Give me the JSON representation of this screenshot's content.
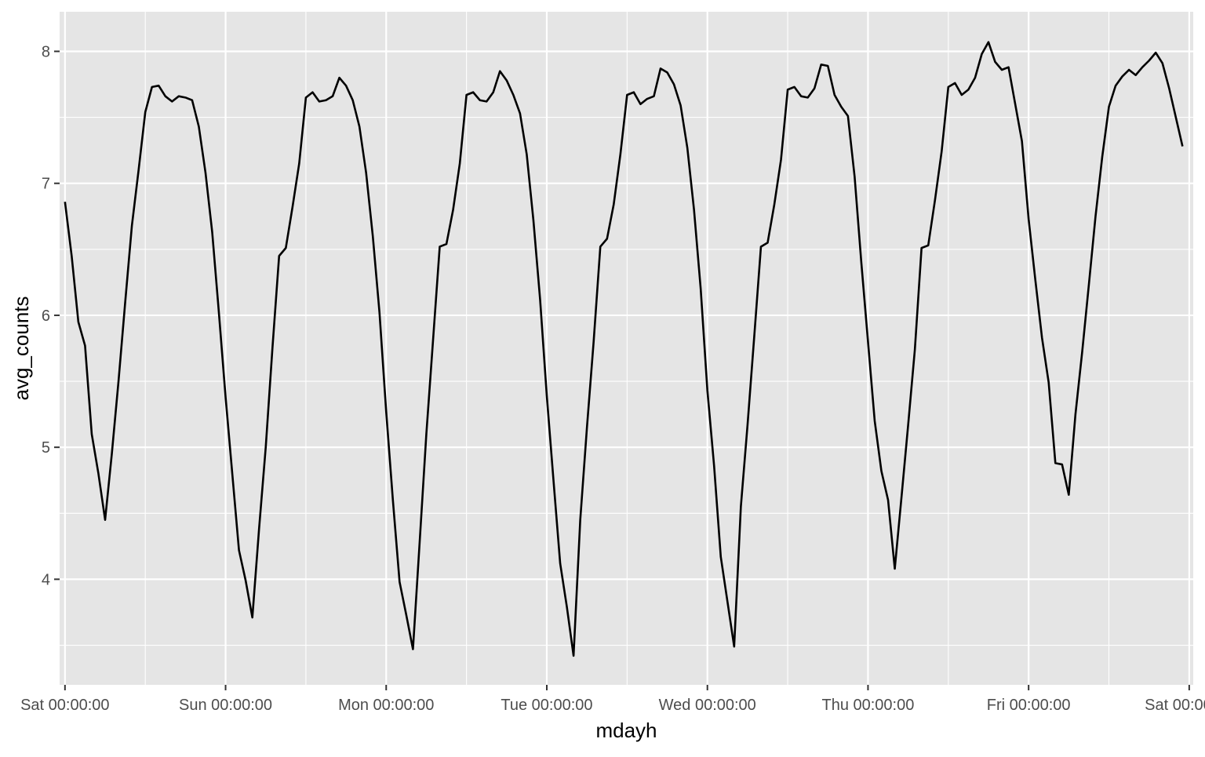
{
  "chart_data": {
    "type": "line",
    "title": "",
    "xlabel": "mdayh",
    "ylabel": "avg_counts",
    "grid": true,
    "legend": "none",
    "xlim": [
      "Fri 23:12:00",
      "Sat 00:36:00 (next week)"
    ],
    "ylim": [
      3.2,
      8.3
    ],
    "x_unit": "hours",
    "x_start": "Sat 00:00:00",
    "x_ticks": [
      {
        "label": "Sat 00:00:00",
        "hour": 0
      },
      {
        "label": "Sun 00:00:00",
        "hour": 24
      },
      {
        "label": "Mon 00:00:00",
        "hour": 48
      },
      {
        "label": "Tue 00:00:00",
        "hour": 72
      },
      {
        "label": "Wed 00:00:00",
        "hour": 96
      },
      {
        "label": "Thu 00:00:00",
        "hour": 120
      },
      {
        "label": "Fri 00:00:00",
        "hour": 144
      },
      {
        "label": "Sat 00:00:00",
        "hour": 168
      }
    ],
    "y_ticks": [
      4,
      5,
      6,
      7,
      8
    ],
    "colors": {
      "panel": "#e5e5e5",
      "grid": "#ffffff",
      "line": "#000000",
      "tick": "#4d4d4d"
    },
    "series": [
      {
        "x": [
          0,
          1,
          2,
          3,
          4,
          5,
          6,
          7,
          8,
          9,
          10,
          11,
          12,
          13,
          14,
          15,
          16,
          17,
          18,
          19,
          20,
          21,
          22,
          23,
          24,
          25,
          26,
          27,
          28,
          29,
          30,
          31,
          32,
          33,
          34,
          35,
          36,
          37,
          38,
          39,
          40,
          41,
          42,
          43,
          44,
          45,
          46,
          47,
          48,
          49,
          50,
          51,
          52,
          53,
          54,
          55,
          56,
          57,
          58,
          59,
          60,
          61,
          62,
          63,
          64,
          65,
          66,
          67,
          68,
          69,
          70,
          71,
          72,
          73,
          74,
          75,
          76,
          77,
          78,
          79,
          80,
          81,
          82,
          83,
          84,
          85,
          86,
          87,
          88,
          89,
          90,
          91,
          92,
          93,
          94,
          95,
          96,
          97,
          98,
          99,
          100,
          101,
          102,
          103,
          104,
          105,
          106,
          107,
          108,
          109,
          110,
          111,
          112,
          113,
          114,
          115,
          116,
          117,
          118,
          119,
          120,
          121,
          122,
          123,
          124,
          125,
          126,
          127,
          128,
          129,
          130,
          131,
          132,
          133,
          134,
          135,
          136,
          137,
          138,
          139,
          140,
          141,
          142,
          143,
          144,
          145,
          146,
          147,
          148,
          149,
          150,
          151,
          152,
          153,
          154,
          155,
          156,
          157,
          158,
          159,
          160,
          161,
          162,
          163,
          164,
          165,
          166,
          167
        ],
        "y": [
          6.86,
          6.45,
          5.95,
          5.77,
          5.1,
          4.8,
          4.45,
          4.95,
          5.5,
          6.1,
          6.68,
          7.1,
          7.54,
          7.73,
          7.74,
          7.66,
          7.62,
          7.66,
          7.65,
          7.63,
          7.43,
          7.08,
          6.63,
          6.02,
          5.38,
          4.8,
          4.22,
          3.99,
          3.71,
          4.38,
          5.0,
          5.75,
          6.45,
          6.51,
          6.82,
          7.15,
          7.65,
          7.69,
          7.62,
          7.63,
          7.66,
          7.8,
          7.74,
          7.63,
          7.43,
          7.08,
          6.6,
          6.02,
          5.27,
          4.6,
          3.98,
          3.73,
          3.47,
          4.28,
          5.1,
          5.81,
          6.52,
          6.54,
          6.8,
          7.15,
          7.67,
          7.69,
          7.63,
          7.62,
          7.69,
          7.85,
          7.78,
          7.67,
          7.53,
          7.22,
          6.72,
          6.12,
          5.39,
          4.75,
          4.12,
          3.79,
          3.42,
          4.45,
          5.15,
          5.8,
          6.52,
          6.58,
          6.84,
          7.22,
          7.67,
          7.69,
          7.6,
          7.64,
          7.66,
          7.87,
          7.84,
          7.75,
          7.59,
          7.27,
          6.8,
          6.2,
          5.43,
          4.86,
          4.17,
          3.83,
          3.49,
          4.55,
          5.17,
          5.84,
          6.52,
          6.55,
          6.84,
          7.18,
          7.71,
          7.73,
          7.66,
          7.65,
          7.72,
          7.9,
          7.89,
          7.67,
          7.58,
          7.51,
          7.05,
          6.4,
          5.8,
          5.2,
          4.82,
          4.6,
          4.08,
          4.62,
          5.17,
          5.74,
          6.51,
          6.53,
          6.87,
          7.24,
          7.73,
          7.76,
          7.67,
          7.71,
          7.8,
          7.98,
          8.07,
          7.92,
          7.86,
          7.88,
          7.6,
          7.32,
          6.73,
          6.27,
          5.83,
          5.49,
          4.88,
          4.87,
          4.64,
          5.25,
          5.72,
          6.23,
          6.75,
          7.2,
          7.58,
          7.74,
          7.81,
          7.86,
          7.82,
          7.88,
          7.93,
          7.99,
          7.91,
          7.72,
          7.5,
          7.28
        ]
      }
    ]
  }
}
